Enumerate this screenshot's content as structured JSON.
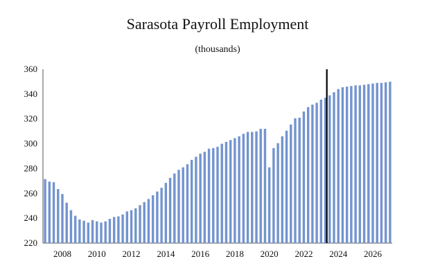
{
  "chart_data": {
    "type": "bar",
    "title": "Sarasota Payroll Employment",
    "subtitle": "(thousands)",
    "xlabel": "",
    "ylabel": "",
    "ylim": [
      220,
      360
    ],
    "yticks": [
      220,
      240,
      260,
      280,
      300,
      320,
      340,
      360
    ],
    "xtick_labels": [
      "2008",
      "2010",
      "2012",
      "2014",
      "2016",
      "2018",
      "2020",
      "2022",
      "2024",
      "2026"
    ],
    "grid": false,
    "bar_color": "#7394cf",
    "forecast_marker_color": "#000000",
    "forecast_start": "2023Q3",
    "categories": [
      "2007Q1",
      "2007Q2",
      "2007Q3",
      "2007Q4",
      "2008Q1",
      "2008Q2",
      "2008Q3",
      "2008Q4",
      "2009Q1",
      "2009Q2",
      "2009Q3",
      "2009Q4",
      "2010Q1",
      "2010Q2",
      "2010Q3",
      "2010Q4",
      "2011Q1",
      "2011Q2",
      "2011Q3",
      "2011Q4",
      "2012Q1",
      "2012Q2",
      "2012Q3",
      "2012Q4",
      "2013Q1",
      "2013Q2",
      "2013Q3",
      "2013Q4",
      "2014Q1",
      "2014Q2",
      "2014Q3",
      "2014Q4",
      "2015Q1",
      "2015Q2",
      "2015Q3",
      "2015Q4",
      "2016Q1",
      "2016Q2",
      "2016Q3",
      "2016Q4",
      "2017Q1",
      "2017Q2",
      "2017Q3",
      "2017Q4",
      "2018Q1",
      "2018Q2",
      "2018Q3",
      "2018Q4",
      "2019Q1",
      "2019Q2",
      "2019Q3",
      "2019Q4",
      "2020Q1",
      "2020Q2",
      "2020Q3",
      "2020Q4",
      "2021Q1",
      "2021Q2",
      "2021Q3",
      "2021Q4",
      "2022Q1",
      "2022Q2",
      "2022Q3",
      "2022Q4",
      "2023Q1",
      "2023Q2",
      "2023Q3",
      "2023Q4",
      "2024Q1",
      "2024Q2",
      "2024Q3",
      "2024Q4",
      "2025Q1",
      "2025Q2",
      "2025Q3",
      "2025Q4",
      "2026Q1",
      "2026Q2",
      "2026Q3",
      "2026Q4",
      "2027Q1"
    ],
    "values": [
      271.5,
      269.5,
      269.0,
      263.5,
      259.5,
      252.5,
      246.5,
      242.0,
      239.0,
      238.0,
      236.5,
      238.5,
      237.5,
      236.5,
      237.5,
      239.5,
      241.0,
      241.5,
      243.0,
      245.5,
      246.5,
      248.0,
      250.5,
      253.0,
      255.5,
      258.5,
      261.5,
      264.5,
      268.5,
      272.5,
      276.0,
      279.0,
      281.0,
      283.5,
      287.0,
      289.5,
      292.0,
      293.5,
      296.0,
      296.5,
      297.5,
      300.0,
      301.5,
      303.0,
      304.5,
      306.0,
      308.0,
      309.5,
      309.5,
      310.0,
      312.0,
      312.0,
      281.0,
      296.5,
      300.5,
      306.0,
      310.5,
      315.5,
      320.5,
      321.0,
      326.0,
      329.5,
      331.5,
      333.0,
      335.5,
      337.0,
      339.0,
      341.5,
      344.0,
      345.5,
      346.0,
      346.5,
      347.0,
      347.0,
      347.5,
      348.0,
      348.5,
      349.0,
      349.0,
      349.5,
      350.0
    ]
  }
}
